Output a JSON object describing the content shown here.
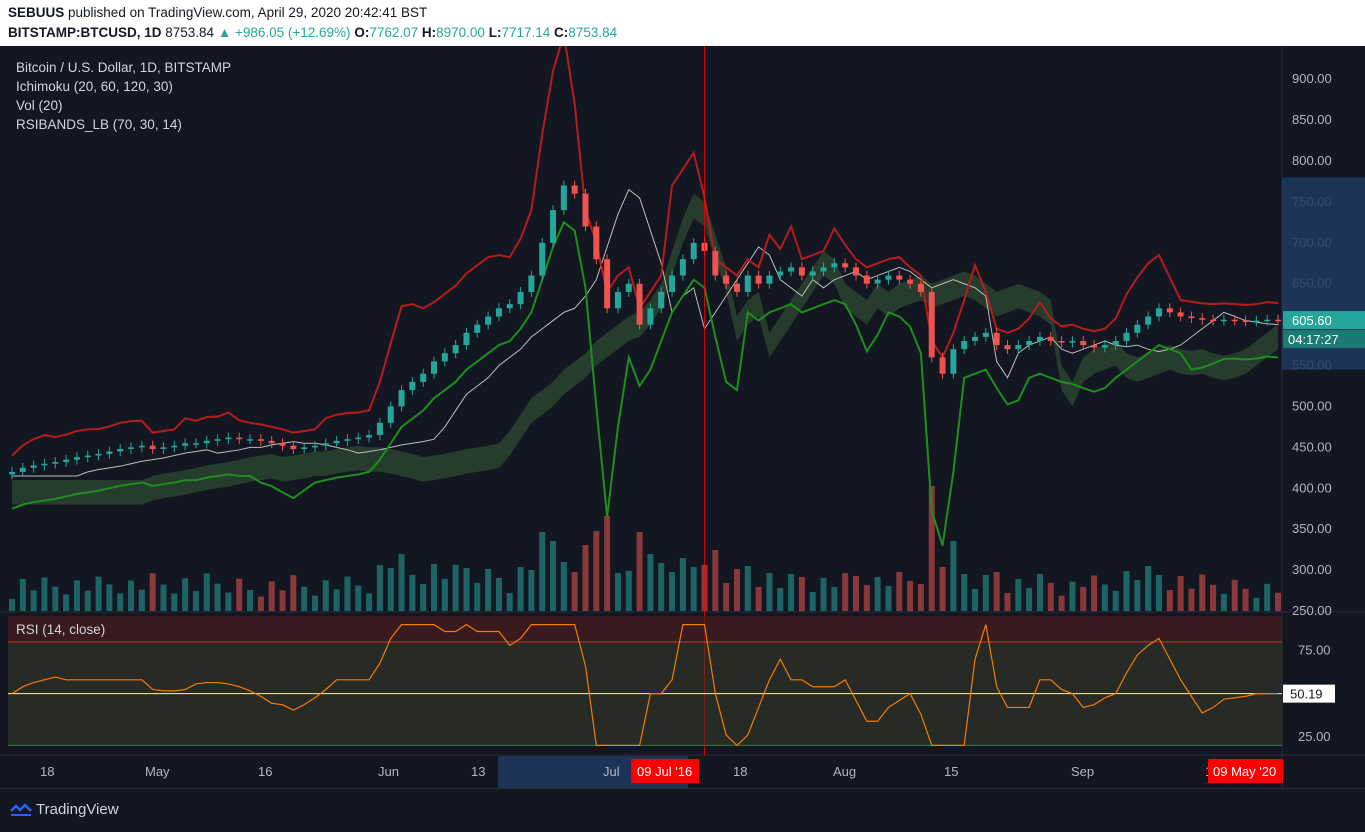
{
  "header": {
    "publisher": "SEBUUS",
    "published_text": "published on TradingView.com, April 29, 2020 20:42:41 BST",
    "symbol": "BITSTAMP:BTCUSD, 1D",
    "last": "8753.84",
    "change": "▲ +986.05 (+12.69%)",
    "open_label": "O:",
    "open": "7762.07",
    "high_label": "H:",
    "high": "8970.00",
    "low_label": "L:",
    "low": "7717.14",
    "close_label": "C:",
    "close": "8753.84"
  },
  "legend": {
    "title": "Bitcoin / U.S. Dollar, 1D, BITSTAMP",
    "ichimoku": "Ichimoku (20, 60, 120, 30)",
    "vol": "Vol (20)",
    "rsibands": "RSIBANDS_LB (70, 30, 14)",
    "rsi": "RSI (14, close)"
  },
  "colors": {
    "bg": "#131722",
    "up": "#26a69a",
    "down": "#ef5350",
    "rsiband_upper": "#b71c1c",
    "base_line": "#1b5e20",
    "conv_line": "#bdbdbd",
    "cloud": "#2e4a31",
    "rsi_line": "#f57c00",
    "accent_date": "#ff0000"
  },
  "footer": {
    "brand": "TradingView",
    "brand_icon": "tradingview-logo-icon"
  },
  "chart_data": [
    {
      "type": "candlestick",
      "title": "Bitcoin / U.S. Dollar, 1D, BITSTAMP",
      "ylim": [
        250,
        910
      ],
      "y_ticks": [
        "900.00",
        "850.00",
        "800.00",
        "750.00",
        "700.00",
        "650.00",
        "600.00",
        "550.00",
        "500.00",
        "450.00",
        "400.00",
        "350.00",
        "300.00",
        "250.00"
      ],
      "x_ticks": [
        "18",
        "May",
        "16",
        "Jun",
        "13",
        "Jul",
        "18",
        "Aug",
        "15",
        "Sep",
        "1"
      ],
      "price_label": "605.60",
      "countdown_label": "04:17:27",
      "crosshair_date": "09 Jul '16",
      "right_date": "09 May '20",
      "close_approx": [
        420,
        425,
        428,
        430,
        432,
        435,
        438,
        440,
        442,
        445,
        448,
        450,
        452,
        448,
        450,
        452,
        455,
        455,
        458,
        460,
        462,
        460,
        460,
        458,
        455,
        452,
        448,
        450,
        452,
        455,
        458,
        460,
        462,
        465,
        480,
        500,
        520,
        530,
        540,
        555,
        565,
        575,
        590,
        600,
        610,
        620,
        625,
        640,
        660,
        700,
        740,
        770,
        760,
        720,
        680,
        620,
        640,
        650,
        600,
        620,
        640,
        660,
        680,
        700,
        690,
        660,
        650,
        640,
        660,
        650,
        660,
        665,
        670,
        660,
        665,
        670,
        675,
        670,
        660,
        650,
        655,
        660,
        655,
        650,
        640,
        560,
        540,
        570,
        580,
        585,
        590,
        575,
        570,
        575,
        580,
        585,
        580,
        578,
        580,
        575,
        572,
        575,
        580,
        590,
        600,
        610,
        620,
        615,
        610,
        608,
        606,
        605,
        606,
        605,
        604,
        605,
        606,
        605
      ]
    },
    {
      "type": "line",
      "title": "RSI (14, close)",
      "ylim": [
        15,
        95
      ],
      "y_ticks": [
        "75.00",
        "50.19",
        "25.00"
      ],
      "current": "50.19"
    }
  ]
}
